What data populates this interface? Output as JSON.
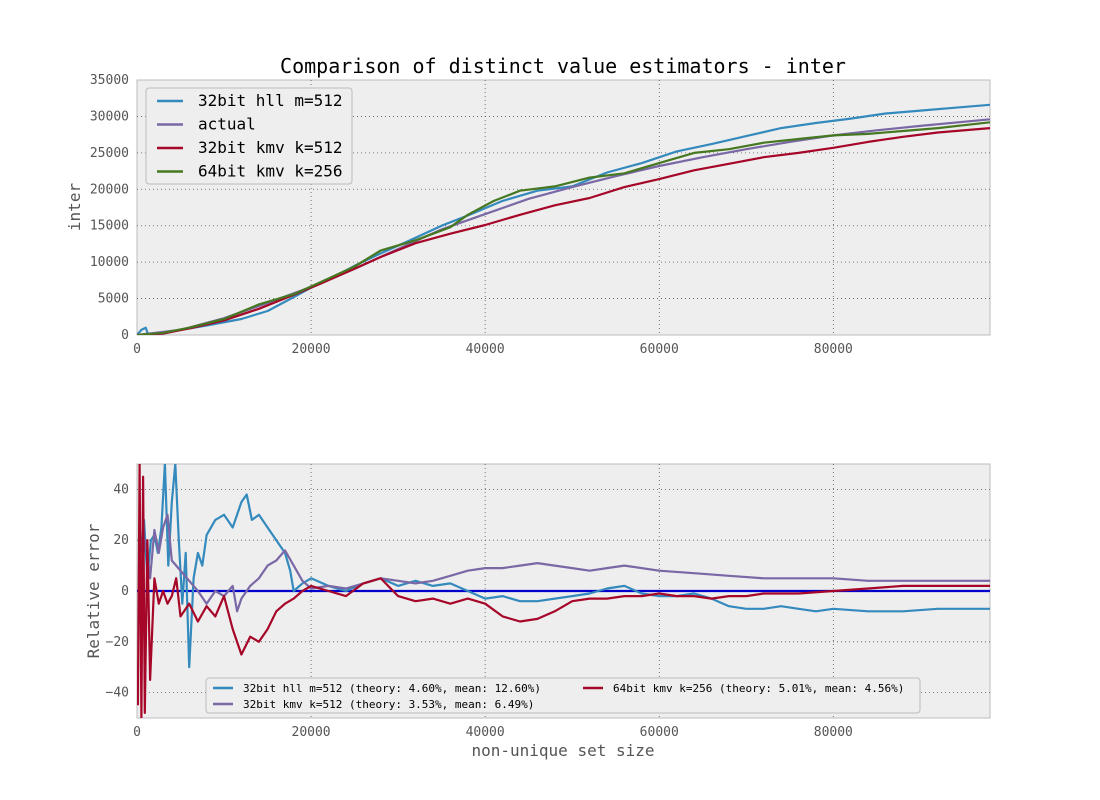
{
  "chart_data": [
    {
      "type": "line",
      "title": "Comparison of distinct value estimators - inter",
      "xlabel": "",
      "ylabel": "inter",
      "xlim": [
        0,
        98000
      ],
      "ylim": [
        0,
        35000
      ],
      "xticks": [
        "0",
        "20000",
        "40000",
        "60000",
        "80000"
      ],
      "yticks": [
        "0",
        "5000",
        "10000",
        "15000",
        "20000",
        "25000",
        "30000",
        "35000"
      ],
      "grid": true,
      "legend_position": "top-left",
      "series": [
        {
          "name": "32bit hll m=512",
          "color": "#348ABD",
          "x": [
            0,
            500,
            1000,
            1300,
            3000,
            5000,
            8000,
            12000,
            15000,
            18000,
            20000,
            22000,
            25000,
            28000,
            31000,
            35000,
            38000,
            42000,
            46000,
            50000,
            54000,
            58000,
            62000,
            66000,
            70000,
            74000,
            78000,
            82000,
            86000,
            90000,
            94000,
            98000
          ],
          "y": [
            0,
            700,
            1000,
            0,
            200,
            700,
            1300,
            2200,
            3300,
            5200,
            6500,
            7600,
            9500,
            11200,
            12800,
            15000,
            16400,
            18400,
            19800,
            20400,
            22300,
            23600,
            25200,
            26200,
            27300,
            28400,
            29100,
            29700,
            30400,
            30800,
            31200,
            31600
          ]
        },
        {
          "name": "actual",
          "color": "#7A68A6",
          "x": [
            0,
            5000,
            10000,
            15000,
            20000,
            25000,
            30000,
            35000,
            40000,
            45000,
            50000,
            55000,
            60000,
            65000,
            70000,
            75000,
            80000,
            85000,
            90000,
            98000
          ],
          "y": [
            0,
            700,
            2300,
            4400,
            6600,
            9100,
            11800,
            14500,
            16600,
            18700,
            20300,
            21800,
            23200,
            24400,
            25500,
            26500,
            27400,
            28100,
            28700,
            29600
          ]
        },
        {
          "name": "32bit kmv k=512",
          "color": "#A60628",
          "x": [
            0,
            3000,
            6000,
            10000,
            14000,
            18000,
            21000,
            25000,
            28000,
            32000,
            36000,
            40000,
            44000,
            48000,
            52000,
            56000,
            60000,
            64000,
            68000,
            72000,
            76000,
            80000,
            84000,
            88000,
            92000,
            98000
          ],
          "y": [
            0,
            200,
            900,
            2000,
            3600,
            5500,
            7000,
            9100,
            10700,
            12600,
            13900,
            15100,
            16500,
            17800,
            18800,
            20300,
            21400,
            22600,
            23500,
            24400,
            25000,
            25700,
            26500,
            27200,
            27800,
            28400
          ]
        },
        {
          "name": "64bit kmv k=256",
          "color": "#467821",
          "x": [
            0,
            3000,
            6000,
            10000,
            14000,
            18000,
            21000,
            25000,
            28000,
            32000,
            36000,
            38000,
            41000,
            44000,
            48000,
            52000,
            56000,
            60000,
            64000,
            68000,
            72000,
            76000,
            80000,
            84000,
            88000,
            92000,
            98000
          ],
          "y": [
            0,
            300,
            1000,
            2200,
            4200,
            5600,
            7200,
            9400,
            11600,
            13000,
            14800,
            16500,
            18400,
            19800,
            20400,
            21600,
            22200,
            23600,
            25000,
            25500,
            26400,
            26900,
            27400,
            27600,
            28000,
            28400,
            29200
          ]
        }
      ]
    },
    {
      "type": "line",
      "title": "",
      "xlabel": "non-unique set size",
      "ylabel": "Relative error",
      "xlim": [
        0,
        98000
      ],
      "ylim": [
        -50,
        50
      ],
      "xticks": [
        "0",
        "20000",
        "40000",
        "60000",
        "80000"
      ],
      "yticks": [
        "−40",
        "−20",
        "0",
        "20",
        "40"
      ],
      "grid": true,
      "legend_position": "bottom-center",
      "series": [
        {
          "name": "32bit hll m=512 (theory: 4.60%, mean: 12.60%)",
          "color": "#348ABD",
          "x": [
            400,
            800,
            1200,
            1600,
            2000,
            2400,
            2800,
            3200,
            3600,
            4000,
            4400,
            4800,
            5200,
            5600,
            6000,
            6500,
            7000,
            7500,
            8000,
            9000,
            10000,
            11000,
            12000,
            12600,
            13200,
            14000,
            15000,
            16000,
            17000,
            17600,
            18000,
            19000,
            20000,
            22000,
            24000,
            26000,
            28000,
            30000,
            32000,
            34000,
            36000,
            38000,
            40000,
            42000,
            44000,
            46000,
            48000,
            50000,
            52000,
            54000,
            56000,
            58000,
            60000,
            62000,
            64000,
            66000,
            68000,
            70000,
            72000,
            74000,
            76000,
            78000,
            80000,
            84000,
            88000,
            92000,
            98000
          ],
          "y": [
            15,
            28,
            5,
            20,
            22,
            15,
            25,
            50,
            10,
            35,
            50,
            20,
            -5,
            15,
            -30,
            5,
            15,
            10,
            22,
            28,
            30,
            25,
            35,
            38,
            28,
            30,
            25,
            20,
            15,
            8,
            0,
            3,
            5,
            2,
            0,
            3,
            5,
            2,
            4,
            2,
            3,
            0,
            -3,
            -2,
            -4,
            -4,
            -3,
            -2,
            -1,
            1,
            2,
            -1,
            -2,
            -2,
            -1,
            -3,
            -6,
            -7,
            -7,
            -6,
            -7,
            -8,
            -7,
            -8,
            -8,
            -7,
            -7
          ]
        },
        {
          "name": "32bit kmv k=512 (theory: 3.53%, mean: 6.49%)",
          "color": "#7A68A6",
          "x": [
            500,
            1000,
            1500,
            2000,
            2500,
            3000,
            3500,
            4000,
            4500,
            5000,
            6000,
            7000,
            8000,
            9000,
            10000,
            11000,
            11500,
            12000,
            13000,
            14000,
            15000,
            16000,
            17000,
            18000,
            19000,
            20000,
            22000,
            24000,
            26000,
            28000,
            30000,
            32000,
            34000,
            36000,
            38000,
            40000,
            42000,
            44000,
            46000,
            48000,
            50000,
            52000,
            54000,
            56000,
            58000,
            60000,
            64000,
            68000,
            72000,
            76000,
            80000,
            84000,
            88000,
            92000,
            98000
          ],
          "y": [
            10,
            20,
            5,
            24,
            15,
            25,
            30,
            12,
            10,
            8,
            4,
            0,
            -5,
            0,
            -2,
            2,
            -8,
            -3,
            2,
            5,
            10,
            12,
            16,
            10,
            4,
            1,
            2,
            1,
            3,
            5,
            4,
            3,
            4,
            6,
            8,
            9,
            9,
            10,
            11,
            10,
            9,
            8,
            9,
            10,
            9,
            8,
            7,
            6,
            5,
            5,
            5,
            4,
            4,
            4,
            4
          ]
        },
        {
          "name": "64bit kmv k=256 (theory: 5.01%, mean: 4.56%)",
          "color": "#A60628",
          "x": [
            100,
            300,
            500,
            700,
            900,
            1200,
            1500,
            2000,
            2500,
            3000,
            3500,
            4000,
            4500,
            5000,
            6000,
            7000,
            8000,
            9000,
            10000,
            11000,
            12000,
            13000,
            14000,
            15000,
            16000,
            17000,
            18000,
            19000,
            20000,
            22000,
            24000,
            26000,
            28000,
            30000,
            32000,
            34000,
            36000,
            38000,
            40000,
            42000,
            44000,
            46000,
            48000,
            50000,
            52000,
            54000,
            56000,
            58000,
            60000,
            62000,
            64000,
            66000,
            68000,
            70000,
            72000,
            76000,
            80000,
            84000,
            88000,
            92000,
            98000
          ],
          "y": [
            -45,
            50,
            -50,
            45,
            -48,
            20,
            -35,
            5,
            -5,
            0,
            -5,
            -2,
            5,
            -10,
            -5,
            -12,
            -6,
            -10,
            -2,
            -15,
            -25,
            -18,
            -20,
            -15,
            -8,
            -5,
            -3,
            0,
            2,
            0,
            -2,
            3,
            5,
            -2,
            -4,
            -3,
            -5,
            -3,
            -5,
            -10,
            -12,
            -11,
            -8,
            -4,
            -3,
            -3,
            -2,
            -2,
            -1,
            -2,
            -2,
            -3,
            -2,
            -2,
            -1,
            -1,
            0,
            1,
            2,
            2,
            2
          ]
        }
      ],
      "reference_line": {
        "y": 0,
        "color": "#0000CC"
      }
    }
  ]
}
